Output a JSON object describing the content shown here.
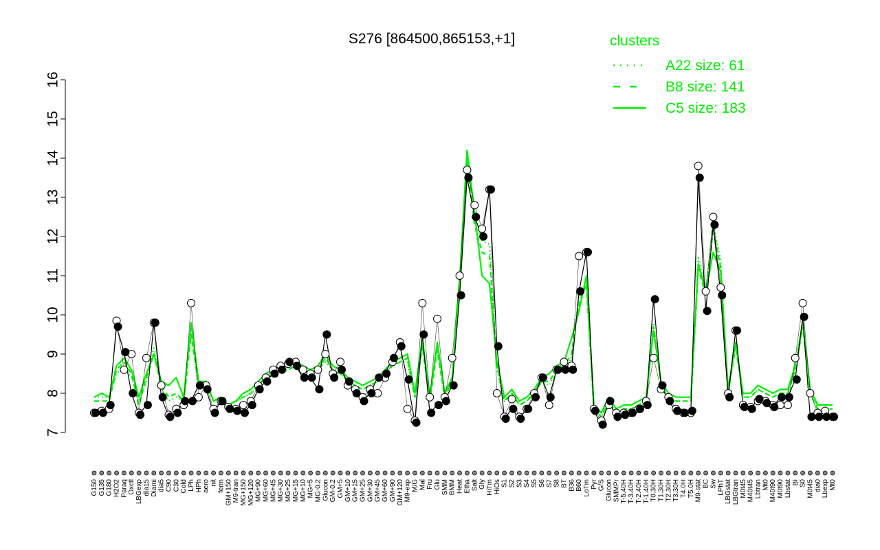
{
  "chart_data": {
    "type": "line",
    "title": "S276 [864500,865153,+1]",
    "ylim": [
      7,
      16
    ],
    "yticks": [
      7,
      8,
      9,
      10,
      11,
      12,
      13,
      14,
      15,
      16
    ],
    "ytick_labels": [
      "7",
      "8",
      "9",
      "10",
      "11",
      "12",
      "13",
      "14",
      "15",
      "16"
    ],
    "xlabel": "",
    "ylabel": "",
    "grid": false,
    "legend": {
      "title": "clusters",
      "position": "top-right",
      "entries": [
        {
          "label": "A22 size: 61",
          "style": "dotted"
        },
        {
          "label": "B8 size: 141",
          "style": "dashed"
        },
        {
          "label": "C5 size: 183",
          "style": "solid"
        }
      ]
    },
    "colors": {
      "series": "#00ee00",
      "points": "#000000",
      "axis": "#000000"
    },
    "categories": [
      "G150",
      "G135",
      "G180",
      "H2O2",
      "Paraq",
      "Oxctl",
      "LBGexp",
      "dia15",
      "Diami",
      "dia5",
      "C90",
      "C30",
      "Cold",
      "LPh",
      "HPh",
      "aero",
      "nit",
      "ferm",
      "GM+150",
      "M9-tran",
      "MG+150",
      "MG+120",
      "MG+90",
      "MG+60",
      "MG+45",
      "MG+30",
      "MG+25",
      "MG+15",
      "MG+10",
      "MG+5",
      "MG-0.2",
      "Glucon",
      "GM-0.2",
      "GM+5",
      "GM+10",
      "GM+15",
      "GM+25",
      "GM+30",
      "GM+45",
      "GM+60",
      "GM+90",
      "GM+120",
      "M9-exp",
      "M/G",
      "Mal",
      "Fru",
      "Glu",
      "SMM",
      "BMM",
      "Heat",
      "Etha",
      "Salt",
      "Gly",
      "HiTm",
      "HiOs",
      "S1",
      "S2",
      "S3",
      "S4",
      "S5",
      "S6",
      "S7",
      "S8",
      "BT",
      "B36",
      "B60",
      "LoTm",
      "Pyr",
      "G/S",
      "Glucon2",
      "SMMPr",
      "T-5.40H",
      "T-3.40H",
      "T-2.40H",
      "T-1.40H",
      "T0.30H",
      "T1.30H",
      "T2.30H",
      "T3.30H",
      "T4.0H",
      "T5.0H",
      "M9-stat",
      "BC",
      "Sw",
      "LPhT",
      "LBGstat",
      "LBGtran",
      "M0t45",
      "M40t45",
      "Lbtran",
      "Mt0",
      "M40t90",
      "M0t90",
      "Lbstat",
      "BI",
      "S0",
      "M0t45b",
      "dia0",
      "Lbexp",
      "Mt0b"
    ],
    "visible_xtick_labels": [
      "G150",
      "G135",
      "G180",
      "H2O2",
      "Paraq",
      "Oxctl",
      "LBGexp",
      "dia15",
      "Diami",
      "dia5",
      "C90",
      "C30",
      "Cold",
      "LPh",
      "HPh",
      "aero",
      "nit",
      "ferm",
      "GM+150",
      "M9-tran",
      "MG+150",
      "MG+120",
      "MG+90",
      "MG+60",
      "MG+45",
      "MG+30",
      "MG+25",
      "MG+15",
      "MG+10",
      "MG+5",
      "MG-0.2",
      "Glucon",
      "GM-0.2",
      "GM+5",
      "GM+10",
      "GM+15",
      "GM+25",
      "GM+30",
      "GM+45",
      "GM+60",
      "GM+90",
      "GM+120",
      "M9-exp",
      "M/G",
      "Mal",
      "Fru",
      "Glu",
      "SMM",
      "BMM",
      "Heat",
      "Etha",
      "Salt",
      "Gly",
      "HiTm",
      "HiOs",
      "S1",
      "S2",
      "S3",
      "S4",
      "S5",
      "S6",
      "S7",
      "S8",
      "BT",
      "B36",
      "B60",
      "LoTm",
      "Pyr",
      "G/S",
      "Glucon",
      "SMMPr",
      "T-5.40H",
      "T-3.40H",
      "T-2.40H",
      "T-1.40H",
      "T0.30H",
      "T1.30H",
      "T2.30H",
      "T3.30H",
      "T4.0H",
      "T5.0H",
      "M9-stat",
      "BC",
      "Sw",
      "LPhT",
      "LBGstat",
      "LBGtran",
      "M0t45",
      "M40t45",
      "Lbtran",
      "Mt0",
      "M40t90",
      "M0t90",
      "Lbstat",
      "BI",
      "S0",
      "M0t45",
      "dia0",
      "Lbexp",
      "Mt0"
    ],
    "series": [
      {
        "name": "A22 size: 61",
        "values": [
          7.9,
          7.9,
          7.9,
          8.5,
          8.7,
          8.4,
          7.8,
          8.3,
          9.2,
          8.1,
          7.8,
          7.9,
          7.8,
          9.6,
          8.1,
          8.2,
          7.8,
          7.9,
          7.7,
          7.8,
          7.9,
          8.0,
          8.2,
          8.4,
          8.5,
          8.6,
          8.6,
          8.7,
          8.6,
          8.5,
          8.6,
          8.8,
          8.6,
          8.5,
          8.3,
          8.2,
          8.1,
          8.2,
          8.3,
          8.5,
          8.7,
          8.8,
          8.8,
          7.9,
          9.3,
          7.8,
          9.2,
          7.9,
          8.3,
          10.8,
          14.0,
          12.4,
          11.9,
          11.8,
          8.6,
          7.8,
          8.0,
          7.7,
          7.8,
          8.0,
          8.3,
          8.2,
          8.6,
          8.6,
          8.9,
          10.5,
          10.7,
          7.6,
          7.4,
          7.7,
          7.5,
          7.6,
          7.6,
          7.7,
          7.8,
          9.8,
          8.2,
          7.9,
          7.8,
          7.8,
          7.8,
          11.5,
          10.6,
          12.3,
          11.4,
          8.0,
          9.3,
          7.9,
          7.9,
          8.1,
          8.0,
          7.9,
          8.0,
          8.0,
          8.6,
          9.8,
          8.0,
          7.6,
          7.6,
          7.6
        ]
      },
      {
        "name": "B8 size: 141",
        "values": [
          7.8,
          7.8,
          7.8,
          8.6,
          8.8,
          8.5,
          7.7,
          8.4,
          9.0,
          8.2,
          7.9,
          8.0,
          7.8,
          9.5,
          8.2,
          8.3,
          7.8,
          7.9,
          7.7,
          7.8,
          7.9,
          8.0,
          8.2,
          8.4,
          8.5,
          8.6,
          8.6,
          8.7,
          8.6,
          8.5,
          8.6,
          8.9,
          8.6,
          8.5,
          8.3,
          8.2,
          8.1,
          8.2,
          8.3,
          8.5,
          8.7,
          8.8,
          8.9,
          7.9,
          9.2,
          7.8,
          9.1,
          7.9,
          8.3,
          10.7,
          13.9,
          12.3,
          11.6,
          11.5,
          8.7,
          7.8,
          8.0,
          7.7,
          7.8,
          8.0,
          8.3,
          8.3,
          8.6,
          8.7,
          9.0,
          10.3,
          10.8,
          7.6,
          7.4,
          7.8,
          7.5,
          7.6,
          7.6,
          7.7,
          7.8,
          9.7,
          8.2,
          7.9,
          7.8,
          7.8,
          7.8,
          11.2,
          10.5,
          12.2,
          11.2,
          8.0,
          9.2,
          7.9,
          7.9,
          8.1,
          8.0,
          7.9,
          8.0,
          8.0,
          8.6,
          9.7,
          8.0,
          7.6,
          7.6,
          7.6
        ]
      },
      {
        "name": "C5 size: 183",
        "values": [
          7.9,
          8.0,
          7.9,
          8.7,
          8.9,
          8.6,
          7.9,
          8.5,
          9.0,
          8.3,
          8.2,
          8.4,
          7.9,
          9.8,
          8.3,
          8.3,
          7.8,
          7.9,
          7.7,
          7.8,
          8.0,
          8.1,
          8.3,
          8.5,
          8.6,
          8.7,
          8.7,
          8.8,
          8.7,
          8.6,
          8.7,
          9.0,
          8.7,
          8.6,
          8.4,
          8.3,
          8.2,
          8.3,
          8.4,
          8.6,
          8.8,
          8.9,
          9.0,
          8.0,
          9.4,
          7.9,
          9.3,
          8.0,
          8.4,
          10.9,
          14.2,
          12.6,
          11.0,
          10.8,
          8.8,
          7.9,
          8.1,
          7.8,
          7.9,
          8.1,
          8.4,
          8.5,
          8.7,
          8.8,
          9.4,
          10.1,
          11.0,
          7.7,
          7.5,
          7.9,
          7.6,
          7.7,
          7.7,
          7.8,
          7.9,
          9.6,
          8.3,
          8.0,
          7.9,
          7.9,
          7.9,
          11.3,
          10.6,
          11.6,
          11.1,
          8.1,
          9.3,
          8.0,
          8.0,
          8.2,
          8.1,
          8.0,
          8.1,
          8.1,
          8.7,
          9.8,
          8.1,
          7.7,
          7.7,
          7.7
        ]
      }
    ],
    "points": {
      "open": [
        7.5,
        7.55,
        7.6,
        9.85,
        8.6,
        9.0,
        7.5,
        8.9,
        9.8,
        8.2,
        7.45,
        7.6,
        7.7,
        10.3,
        7.9,
        8.2,
        7.6,
        7.8,
        7.65,
        7.6,
        7.7,
        7.8,
        8.2,
        8.4,
        8.6,
        8.7,
        8.75,
        8.8,
        8.6,
        8.5,
        8.6,
        9.0,
        8.5,
        8.8,
        8.2,
        8.1,
        7.9,
        8.1,
        8.0,
        8.4,
        8.8,
        9.3,
        7.6,
        7.3,
        10.3,
        7.9,
        9.9,
        7.9,
        8.9,
        11.0,
        13.7,
        12.8,
        12.2,
        13.2,
        8.0,
        7.4,
        7.85,
        7.4,
        7.6,
        8.0,
        8.4,
        7.7,
        8.6,
        8.8,
        8.7,
        11.5,
        11.6,
        7.6,
        7.3,
        7.7,
        7.5,
        7.5,
        7.5,
        7.6,
        7.8,
        8.9,
        8.1,
        7.9,
        7.6,
        7.5,
        7.5,
        13.8,
        10.6,
        12.5,
        10.7,
        8.0,
        9.6,
        7.7,
        7.65,
        7.8,
        7.8,
        7.7,
        7.7,
        7.7,
        8.9,
        10.3,
        8.0,
        7.5,
        7.55,
        7.4
      ],
      "filled": [
        7.5,
        7.5,
        7.7,
        9.7,
        9.05,
        8.0,
        7.45,
        7.7,
        9.8,
        7.9,
        7.4,
        7.5,
        7.8,
        7.8,
        8.2,
        8.1,
        7.5,
        7.8,
        7.6,
        7.55,
        7.5,
        7.7,
        8.1,
        8.3,
        8.5,
        8.6,
        8.8,
        8.7,
        8.4,
        8.4,
        8.1,
        9.5,
        8.4,
        8.6,
        8.3,
        8.0,
        7.8,
        8.0,
        8.4,
        8.5,
        8.9,
        9.2,
        8.35,
        7.25,
        9.5,
        7.5,
        7.7,
        7.8,
        8.2,
        10.5,
        13.5,
        12.5,
        12.0,
        13.2,
        9.2,
        7.35,
        7.6,
        7.35,
        7.6,
        7.9,
        8.4,
        7.9,
        8.6,
        8.6,
        8.6,
        10.6,
        11.6,
        7.55,
        7.2,
        7.8,
        7.4,
        7.45,
        7.5,
        7.6,
        7.7,
        10.4,
        8.2,
        7.8,
        7.55,
        7.5,
        7.55,
        13.5,
        10.1,
        12.3,
        10.5,
        7.9,
        9.6,
        7.65,
        7.6,
        7.85,
        7.75,
        7.65,
        7.9,
        7.9,
        8.35,
        9.95,
        7.4,
        7.4,
        7.4,
        7.4
      ]
    }
  }
}
